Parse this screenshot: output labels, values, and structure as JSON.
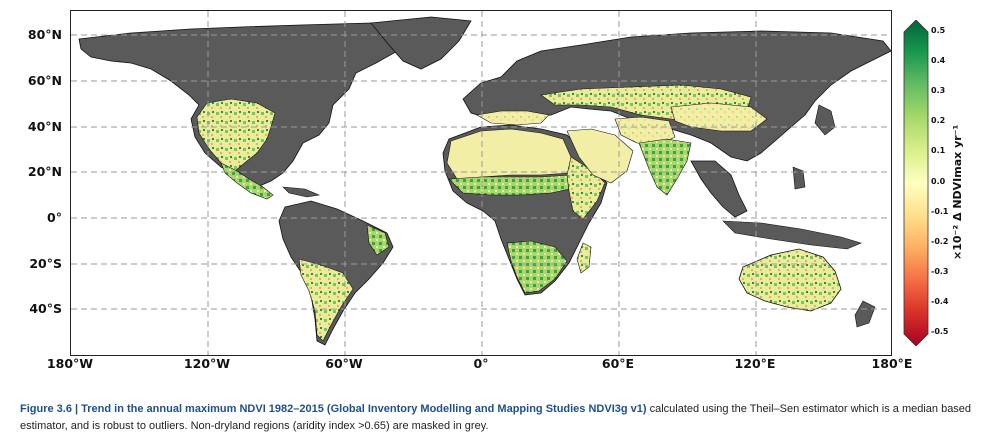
{
  "map": {
    "title": "",
    "latitude_labels": [
      "80°N",
      "60°N",
      "40°N",
      "20°N",
      "0°",
      "20°S",
      "40°S"
    ],
    "longitude_labels": [
      "180°W",
      "120°W",
      "60°W",
      "0°",
      "60°E",
      "120°E",
      "180°E"
    ],
    "masked_color": "#5a5a5a",
    "ocean_color": "#ffffff",
    "gridline_style": "dashed grey"
  },
  "colorbar": {
    "ticks": [
      "0.5",
      "0.4",
      "0.3",
      "0.2",
      "0.1",
      "0.0",
      "-0.1",
      "-0.2",
      "-0.3",
      "-0.4",
      "-0.5"
    ],
    "label": "×10⁻² Δ NDVImax yr⁻¹",
    "colors": [
      "#00643a",
      "#1a9850",
      "#66bd63",
      "#a6d96a",
      "#d9ef8b",
      "#ffffbf",
      "#fee08b",
      "#fdae61",
      "#f46d43",
      "#d73027",
      "#a50026"
    ]
  },
  "caption": {
    "figure_number": "Figure 3.6 |",
    "title": "Trend in the annual maximum NDVI 1982–2015 (Global Inventory Modelling and Mapping Studies NDVI3g v1)",
    "text": " calculated using the Theil–Sen estimator which is a median based estimator, and is robust to outliers. Non-dryland regions (aridity index >0.65) are masked in grey."
  }
}
